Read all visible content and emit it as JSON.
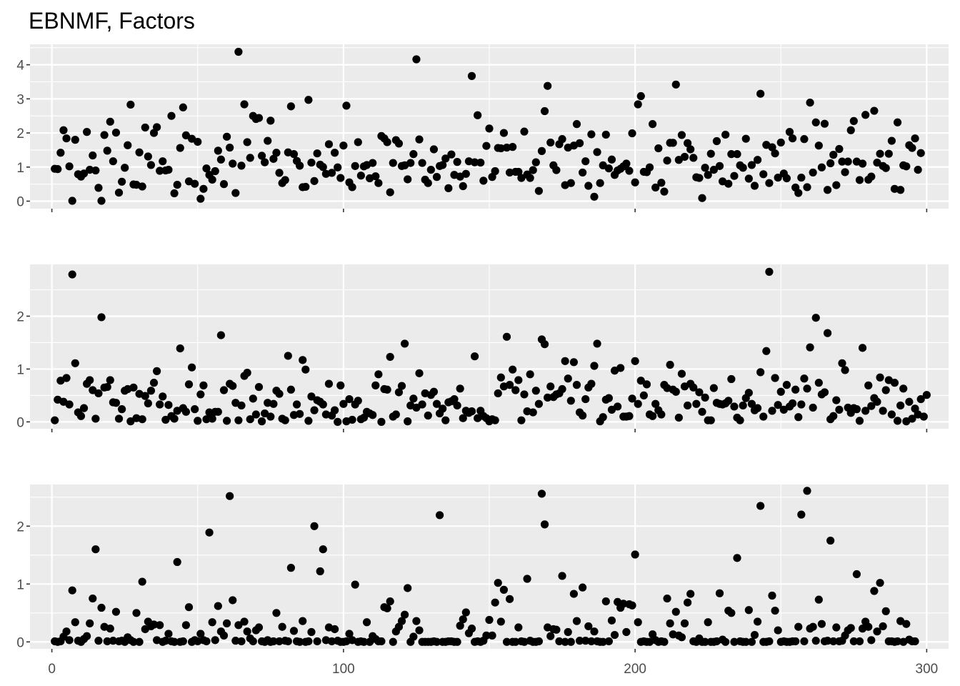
{
  "chart_data": {
    "type": "scatter",
    "title": "EBNMF, Factors",
    "xlabel": "",
    "ylabel": "",
    "xlim": [
      -7.5,
      307.5
    ],
    "x_ticks": [
      0,
      100,
      200,
      300
    ],
    "x_tick_labels": [
      "0",
      "100",
      "200",
      "300"
    ],
    "grid": true,
    "background": "#ebebeb",
    "point_color": "#000000",
    "panels": [
      {
        "name": "",
        "ylim": [
          -0.22,
          4.6
        ],
        "y_ticks": [
          0,
          1,
          2,
          3,
          4
        ],
        "y_tick_labels": [
          "0",
          "1",
          "2",
          "3",
          "4"
        ],
        "values": [
          0.95,
          0.94,
          1.42,
          2.08,
          1.84,
          1.02,
          0.01,
          1.8,
          0.79,
          0.72,
          0.81,
          2.03,
          0.92,
          1.34,
          0.9,
          0.39,
          0.01,
          1.94,
          1.48,
          2.33,
          1.17,
          2.01,
          0.25,
          0.57,
          0.98,
          1.64,
          2.83,
          0.49,
          0.48,
          1.43,
          0.43,
          2.16,
          1.31,
          1.06,
          2.0,
          2.17,
          0.89,
          1.17,
          0.9,
          0.92,
          2.5,
          0.23,
          0.48,
          1.56,
          2.75,
          1.93,
          0.58,
          1.83,
          0.51,
          1.74,
          0.07,
          0.36,
          0.96,
          0.77,
          0.63,
          0.88,
          1.48,
          1.22,
          0.5,
          1.89,
          1.57,
          1.1,
          0.24,
          4.38,
          1.04,
          2.84,
          1.73,
          1.27,
          2.5,
          2.41,
          2.44,
          1.33,
          1.14,
          1.77,
          2.36,
          1.24,
          1.42,
          0.83,
          0.53,
          0.62,
          1.43,
          2.78,
          1.38,
          1.18,
          1.04,
          0.41,
          0.42,
          2.97,
          1.13,
          0.59,
          1.4,
          1.07,
          1.0,
          0.8,
          1.67,
          0.83,
          1.42,
          0.99,
          0.68,
          1.63,
          2.8,
          0.55,
          0.41,
          1.03,
          1.73,
          0.75,
          1.02,
          1.06,
          0.67,
          1.12,
          0.73,
          0.53,
          1.91,
          1.84,
          1.73,
          0.26,
          1.12,
          1.79,
          1.69,
          1.03,
          1.05,
          0.64,
          1.12,
          1.38,
          4.16,
          1.81,
          1.12,
          0.63,
          0.53,
          0.92,
          1.52,
          0.71,
          1.03,
          1.06,
          1.25,
          0.38,
          1.37,
          0.77,
          1.15,
          0.72,
          0.44,
          0.8,
          1.17,
          3.67,
          1.14,
          2.52,
          1.13,
          0.6,
          1.62,
          2.13,
          0.71,
          0.88,
          1.56,
          1.55,
          2.0,
          1.57,
          0.84,
          1.59,
          0.86,
          0.86,
          0.68,
          2.04,
          0.78,
          0.68,
          0.91,
          1.14,
          0.3,
          1.47,
          2.64,
          3.38,
          1.72,
          1.05,
          0.91,
          1.67,
          1.82,
          0.47,
          1.57,
          0.53,
          1.63,
          2.26,
          1.7,
          0.84,
          1.17,
          0.45,
          1.96,
          0.13,
          1.44,
          0.53,
          1.05,
          1.95,
          0.96,
          1.22,
          0.77,
          0.9,
          0.95,
          1.02,
          1.1,
          0.89,
          1.99,
          0.55,
          2.84,
          3.08,
          0.86,
          0.85,
          0.99,
          2.26,
          0.4,
          1.55,
          0.54,
          0.28,
          1.19,
          1.71,
          1.71,
          3.42,
          1.21,
          1.94,
          1.3,
          1.7,
          1.52,
          1.27,
          0.7,
          0.68,
          0.09,
          0.98,
          0.77,
          1.39,
          0.92,
          1.76,
          1.03,
          0.58,
          1.95,
          0.51,
          1.38,
          0.74,
          1.38,
          1.05,
          0.98,
          1.83,
          0.66,
          1.06,
          0.45,
          1.21,
          3.15,
          0.79,
          1.65,
          0.53,
          1.58,
          1.4,
          0.69,
          1.72,
          0.81,
          0.67,
          2.03,
          1.84,
          0.4,
          0.24,
          0.69,
          1.82,
          0.41,
          2.89,
          0.84,
          2.31,
          1.63,
          0.99,
          2.27,
          0.33,
          1.11,
          1.36,
          0.47,
          1.53,
          1.16,
          0.85,
          1.16,
          2.08,
          2.35,
          1.16,
          0.62,
          1.1,
          2.53,
          0.63,
          0.72,
          2.65,
          1.13,
          1.39,
          1.03,
          0.97,
          1.39,
          1.77,
          0.36,
          2.31,
          0.33,
          1.05,
          1.02,
          1.64,
          1.56,
          1.84,
          0.92,
          1.41
        ]
      },
      {
        "name": "",
        "ylim": [
          -0.13,
          2.98
        ],
        "y_ticks": [
          0,
          1,
          2
        ],
        "y_tick_labels": [
          "0",
          "1",
          "2"
        ],
        "values": [
          0.03,
          0.42,
          0.78,
          0.38,
          0.83,
          0.33,
          2.79,
          1.11,
          0.18,
          0.11,
          0.26,
          0.72,
          0.79,
          0.6,
          0.06,
          0.54,
          1.98,
          0.65,
          0.66,
          0.79,
          0.37,
          0.36,
          0.06,
          0.24,
          0.59,
          0.62,
          0.01,
          0.65,
          0.07,
          0.53,
          0.05,
          0.49,
          0.35,
          0.59,
          0.74,
          0.96,
          0.33,
          0.48,
          0.04,
          0.32,
          0.11,
          0.06,
          0.21,
          1.39,
          0.26,
          0.19,
          0.71,
          1.03,
          0.24,
          0.02,
          0.52,
          0.69,
          0.05,
          0.18,
          0.06,
          0.19,
          0.19,
          1.64,
          0.6,
          0.02,
          0.72,
          0.68,
          0.36,
          0.03,
          0.31,
          0.87,
          0.93,
          0.05,
          0.44,
          0.14,
          0.66,
          0.01,
          0.16,
          0.36,
          0.1,
          0.34,
          0.59,
          0.53,
          0.06,
          0.03,
          1.25,
          0.61,
          0.13,
          0.33,
          0.15,
          1.17,
          0.99,
          0.02,
          0.48,
          0.22,
          0.41,
          0.38,
          0.33,
          0.14,
          0.72,
          0.12,
          0.22,
          0.0,
          0.69,
          0.34,
          0.01,
          0.43,
          0.04,
          0.33,
          0.4,
          0.05,
          0.08,
          0.19,
          0.16,
          0.13,
          0.69,
          0.9,
          0.0,
          0.62,
          0.61,
          1.23,
          0.1,
          0.14,
          0.56,
          0.68,
          1.48,
          0.01,
          0.31,
          0.44,
          0.27,
          0.92,
          0.33,
          0.54,
          0.12,
          0.51,
          0.57,
          0.34,
          0.16,
          0.25,
          0.03,
          0.37,
          0.39,
          0.43,
          0.31,
          0.63,
          0.07,
          0.21,
          0.17,
          0.2,
          1.24,
          0.07,
          0.21,
          0.11,
          0.07,
          0.01,
          0.05,
          0.03,
          0.54,
          0.84,
          0.67,
          1.61,
          0.7,
          0.99,
          0.6,
          0.79,
          0.03,
          0.52,
          0.2,
          0.9,
          0.18,
          0.59,
          0.34,
          1.56,
          1.47,
          0.46,
          0.67,
          0.47,
          0.52,
          0.54,
          0.62,
          1.15,
          0.82,
          0.4,
          1.13,
          0.7,
          0.18,
          0.12,
          0.43,
          0.65,
          0.72,
          1.06,
          1.48,
          0.01,
          0.09,
          0.42,
          0.45,
          0.23,
          0.97,
          0.29,
          1.02,
          0.1,
          0.1,
          0.11,
          0.44,
          1.15,
          0.34,
          0.78,
          0.5,
          0.71,
          0.14,
          0.11,
          0.34,
          0.22,
          0.14,
          0.7,
          0.64,
          1.08,
          0.61,
          0.57,
          0.08,
          0.91,
          0.67,
          0.31,
          0.72,
          0.65,
          0.34,
          0.56,
          0.19,
          0.46,
          0.03,
          0.03,
          0.64,
          0.36,
          0.34,
          0.33,
          0.35,
          0.4,
          0.81,
          0.29,
          0.08,
          0.03,
          0.31,
          0.45,
          0.55,
          0.34,
          0.22,
          0.26,
          0.94,
          0.1,
          1.34,
          2.84,
          0.21,
          0.83,
          0.32,
          0.57,
          0.23,
          0.7,
          0.29,
          0.35,
          0.61,
          0.09,
          0.33,
          0.82,
          0.63,
          1.41,
          0.27,
          1.97,
          0.74,
          0.52,
          0.56,
          1.68,
          0.05,
          0.11,
          0.41,
          0.23,
          1.11,
          0.98,
          0.27,
          0.17,
          0.26,
          0.24,
          0.02,
          1.4,
          0.21,
          0.69,
          0.3,
          0.45,
          0.38,
          0.84,
          0.21,
          0.6,
          0.79,
          0.14,
          0.74,
          0.02,
          0.31,
          0.63,
          0.01,
          0.38,
          0.06,
          0.25,
          0.14,
          0.43,
          0.1,
          0.51
        ]
      },
      {
        "name": "",
        "ylim": [
          -0.12,
          2.72
        ],
        "y_ticks": [
          0,
          1,
          2
        ],
        "y_tick_labels": [
          "0",
          "1",
          "2"
        ],
        "values": [
          0.01,
          0.0,
          0.01,
          0.09,
          0.18,
          0.03,
          0.89,
          0.34,
          0.02,
          0.0,
          0.05,
          0.1,
          0.32,
          0.75,
          1.6,
          0.02,
          0.59,
          0.26,
          0.01,
          0.23,
          0.02,
          0.52,
          0.01,
          0.02,
          0.0,
          0.08,
          0.03,
          0.0,
          0.5,
          0.0,
          1.04,
          0.22,
          0.35,
          0.27,
          0.3,
          0.03,
          0.29,
          0.0,
          0.02,
          0.14,
          0.01,
          0.0,
          1.38,
          0.0,
          0.01,
          0.29,
          0.6,
          0.0,
          0.03,
          0.01,
          0.14,
          0.03,
          0.01,
          1.89,
          0.34,
          0.03,
          0.62,
          0.18,
          0.11,
          0.32,
          2.52,
          0.72,
          0.02,
          0.29,
          0.01,
          0.35,
          0.18,
          0.06,
          0.01,
          0.2,
          0.25,
          0.01,
          0.0,
          0.03,
          0.0,
          0.01,
          0.5,
          0.01,
          0.26,
          0.02,
          0.01,
          1.28,
          0.19,
          0.01,
          0.0,
          0.36,
          0.0,
          0.01,
          0.17,
          2.0,
          0.01,
          1.22,
          1.6,
          0.03,
          0.25,
          0.01,
          0.22,
          0.02,
          0.0,
          0.0,
          0.01,
          0.14,
          0.03,
          0.99,
          0.0,
          0.01,
          0.0,
          0.34,
          0.0,
          0.1,
          0.05,
          0.01,
          0.01,
          0.6,
          0.58,
          0.7,
          0.0,
          0.18,
          0.26,
          0.36,
          0.47,
          0.93,
          0.0,
          0.09,
          0.36,
          0.2,
          0.0,
          0.0,
          0.0,
          0.0,
          0.01,
          0.0,
          2.19,
          0.0,
          0.0,
          0.01,
          0.01,
          0.0,
          0.0,
          0.28,
          0.39,
          0.51,
          0.15,
          0.23,
          0.0,
          0.01,
          0.0,
          0.02,
          0.11,
          0.38,
          0.11,
          0.68,
          1.02,
          0.35,
          0.9,
          0.0,
          0.74,
          0.0,
          0.0,
          0.25,
          0.01,
          0.0,
          1.09,
          0.02,
          0.0,
          0.0,
          0.01,
          2.56,
          2.03,
          0.25,
          0.1,
          0.22,
          0.21,
          0.01,
          1.14,
          0.0,
          0.17,
          0.0,
          0.83,
          0.36,
          0.02,
          0.94,
          0.02,
          0.27,
          0.01,
          0.18,
          0.01,
          0.0,
          0.0,
          0.7,
          0.01,
          0.37,
          0.12,
          0.69,
          0.59,
          0.66,
          0.17,
          0.65,
          0.63,
          1.51,
          0.34,
          0.0,
          0.01,
          0.0,
          0.0,
          0.13,
          0.03,
          0.0,
          0.01,
          0.0,
          0.75,
          0.32,
          0.13,
          0.52,
          0.11,
          0.08,
          0.32,
          0.68,
          0.83,
          0.01,
          0.0,
          0.06,
          0.0,
          0.0,
          0.34,
          0.0,
          0.0,
          0.01,
          0.84,
          0.04,
          0.0,
          0.54,
          0.5,
          0.0,
          1.45,
          0.01,
          0.0,
          0.0,
          0.55,
          0.0,
          0.12,
          0.35,
          2.35,
          0.0,
          0.0,
          0.01,
          0.8,
          0.54,
          0.2,
          0.0,
          0.01,
          0.0,
          0.0,
          0.01,
          0.01,
          0.26,
          2.2,
          0.01,
          2.61,
          0.23,
          0.26,
          0.02,
          0.73,
          0.31,
          0.01,
          0.02,
          1.75,
          0.01,
          0.25,
          0.01,
          0.02,
          0.11,
          0.2,
          0.24,
          0.01,
          1.17,
          0.01,
          0.23,
          0.35,
          0.26,
          0.03,
          0.88,
          0.18,
          1.02,
          0.27,
          0.53,
          0.01,
          0.01,
          0.0,
          0.01,
          0.36,
          0.0,
          0.31,
          0.04,
          0.01,
          0.01
        ]
      }
    ]
  }
}
